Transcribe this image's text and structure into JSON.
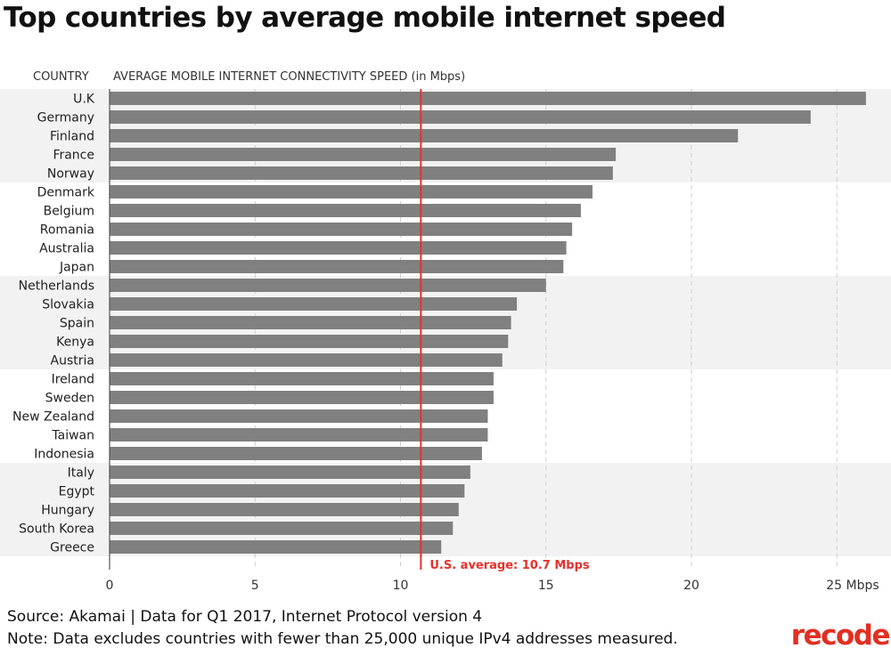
{
  "chart_data": {
    "type": "bar",
    "orientation": "horizontal",
    "title": "Top countries by average mobile internet speed",
    "country_header": "COUNTRY",
    "value_header": "AVERAGE MOBILE INTERNET CONNECTIVITY SPEED (in Mbps)",
    "categories": [
      "U.K",
      "Germany",
      "Finland",
      "France",
      "Norway",
      "Denmark",
      "Belgium",
      "Romania",
      "Australia",
      "Japan",
      "Netherlands",
      "Slovakia",
      "Spain",
      "Kenya",
      "Austria",
      "Ireland",
      "Sweden",
      "New Zealand",
      "Taiwan",
      "Indonesia",
      "Italy",
      "Egypt",
      "Hungary",
      "South Korea",
      "Greece"
    ],
    "values": [
      26.0,
      24.1,
      21.6,
      17.4,
      17.3,
      16.6,
      16.2,
      15.9,
      15.7,
      15.6,
      15.0,
      14.0,
      13.8,
      13.7,
      13.5,
      13.2,
      13.2,
      13.0,
      13.0,
      12.8,
      12.4,
      12.2,
      12.0,
      11.8,
      11.4
    ],
    "xlim": [
      0,
      27
    ],
    "xticks": [
      0,
      5,
      10,
      15,
      20,
      25
    ],
    "xtick_labels": [
      "0",
      "5",
      "10",
      "15",
      "20",
      "25 Mbps"
    ],
    "reference_line": {
      "value": 10.7,
      "label": "U.S. average: 10.7 Mbps",
      "color": "#e8302a"
    },
    "bar_color": "#808080",
    "grid": "dashed vertical",
    "legend": "none"
  },
  "footer": {
    "source": "Source: Akamai | Data for Q1 2017, Internet Protocol version 4",
    "note": "Note: Data excludes countries with fewer than 25,000 unique IPv4 addresses measured."
  },
  "logo": {
    "text": "recode",
    "color": "#e22f22"
  }
}
